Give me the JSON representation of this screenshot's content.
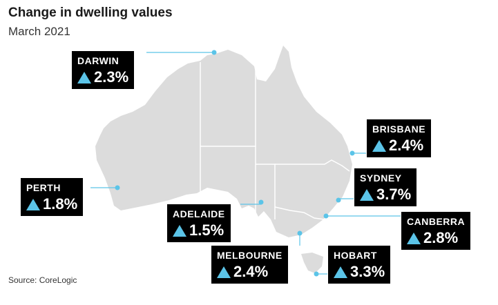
{
  "title": "Change in dwelling values",
  "subtitle": "March 2021",
  "source": "Source: CoreLogic",
  "colors": {
    "land": "#dcdcdc",
    "border": "#ffffff",
    "leader": "#5bc4e8",
    "card": "#000000",
    "up_arrow": "#5bc4e8"
  },
  "cities": [
    {
      "id": "darwin",
      "name": "DARWIN",
      "change": "2.3%",
      "direction": "up"
    },
    {
      "id": "brisbane",
      "name": "BRISBANE",
      "change": "2.4%",
      "direction": "up"
    },
    {
      "id": "perth",
      "name": "PERTH",
      "change": "1.8%",
      "direction": "up"
    },
    {
      "id": "sydney",
      "name": "SYDNEY",
      "change": "3.7%",
      "direction": "up"
    },
    {
      "id": "adelaide",
      "name": "ADELAIDE",
      "change": "1.5%",
      "direction": "up"
    },
    {
      "id": "canberra",
      "name": "CANBERRA",
      "change": "2.8%",
      "direction": "up"
    },
    {
      "id": "melbourne",
      "name": "MELBOURNE",
      "change": "2.4%",
      "direction": "up"
    },
    {
      "id": "hobart",
      "name": "HOBART",
      "change": "3.3%",
      "direction": "up"
    }
  ]
}
